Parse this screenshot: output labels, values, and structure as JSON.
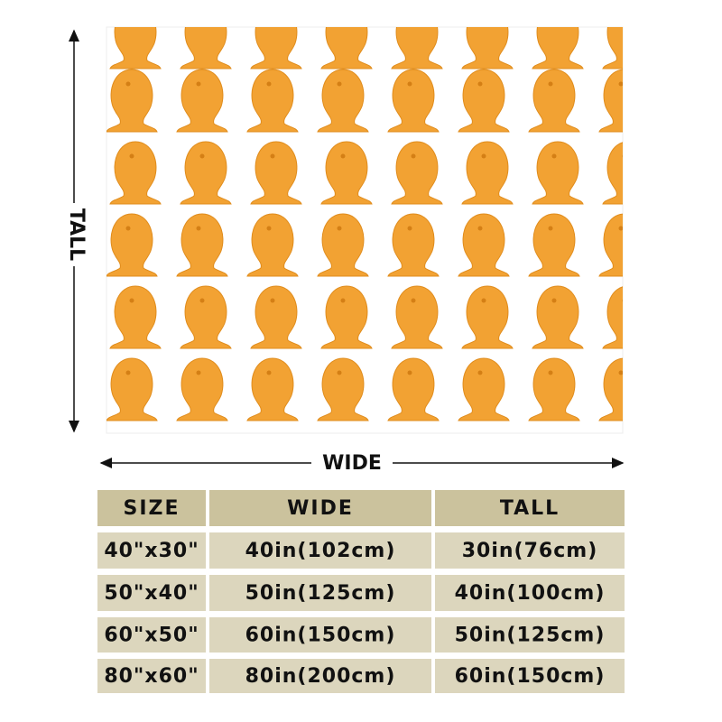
{
  "labels": {
    "tall": "TALL",
    "wide": "WIDE"
  },
  "table": {
    "header": [
      "SIZE",
      "WIDE",
      "TALL"
    ],
    "rows": [
      [
        "40\"x30\"",
        "40in(102cm)",
        "30in(76cm)"
      ],
      [
        "50\"x40\"",
        "50in(125cm)",
        "40in(100cm)"
      ],
      [
        "60\"x50\"",
        "60in(150cm)",
        "50in(125cm)"
      ],
      [
        "80\"x60\"",
        "80in(200cm)",
        "60in(150cm)"
      ]
    ]
  }
}
